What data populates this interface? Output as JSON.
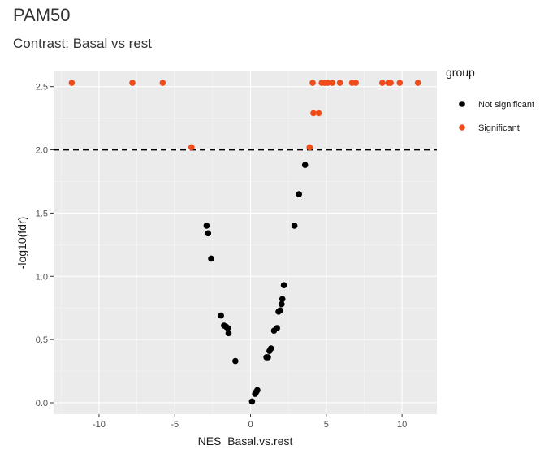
{
  "page": {
    "title": "PAM50",
    "subtitle": "Contrast: Basal vs rest"
  },
  "chart_data": {
    "type": "scatter",
    "title": "PAM50",
    "subtitle": "Contrast: Basal vs rest",
    "xlabel": "NES_Basal.vs.rest",
    "ylabel": "-log10(fdr)",
    "xlim": [
      -13,
      12.3
    ],
    "ylim": [
      -0.09,
      2.62
    ],
    "x_ticks": [
      -10,
      -5,
      0,
      5,
      10
    ],
    "x_tick_labels": [
      "-10",
      "-5",
      "0",
      "5",
      "10"
    ],
    "y_ticks": [
      0,
      0.5,
      1,
      1.5,
      2,
      2.5
    ],
    "y_tick_labels": [
      "0.0",
      "0.5",
      "1.0",
      "1.5",
      "2.0",
      "2.5"
    ],
    "threshold_line": {
      "y": 2.0,
      "style": "dashed",
      "color": "#000000"
    },
    "grid": true,
    "background": "#ebebeb",
    "legend": {
      "title": "group",
      "position": "right",
      "entries": [
        {
          "label": "Not significant",
          "color": "#000000"
        },
        {
          "label": "Significant",
          "color": "#f04c1a"
        }
      ]
    },
    "series": [
      {
        "name": "Not significant",
        "color": "#000000",
        "points": [
          [
            3.6,
            1.88
          ],
          [
            3.2,
            1.65
          ],
          [
            2.9,
            1.4
          ],
          [
            -2.9,
            1.4
          ],
          [
            -2.8,
            1.34
          ],
          [
            -2.6,
            1.14
          ],
          [
            2.2,
            0.93
          ],
          [
            2.1,
            0.82
          ],
          [
            2.05,
            0.78
          ],
          [
            1.95,
            0.73
          ],
          [
            1.85,
            0.72
          ],
          [
            -1.95,
            0.69
          ],
          [
            1.75,
            0.59
          ],
          [
            1.55,
            0.57
          ],
          [
            -1.75,
            0.61
          ],
          [
            -1.6,
            0.6
          ],
          [
            -1.5,
            0.59
          ],
          [
            -1.45,
            0.55
          ],
          [
            1.35,
            0.43
          ],
          [
            1.25,
            0.41
          ],
          [
            1.15,
            0.36
          ],
          [
            1.05,
            0.36
          ],
          [
            -1.0,
            0.33
          ],
          [
            0.45,
            0.1
          ],
          [
            0.4,
            0.09
          ],
          [
            0.35,
            0.08
          ],
          [
            0.3,
            0.07
          ],
          [
            0.1,
            0.01
          ]
        ]
      },
      {
        "name": "Significant",
        "color": "#f04c1a",
        "points": [
          [
            -11.8,
            2.53
          ],
          [
            -7.8,
            2.53
          ],
          [
            -5.8,
            2.53
          ],
          [
            -3.9,
            2.02
          ],
          [
            3.9,
            2.02
          ],
          [
            4.1,
            2.53
          ],
          [
            4.15,
            2.29
          ],
          [
            4.5,
            2.29
          ],
          [
            4.7,
            2.53
          ],
          [
            4.9,
            2.53
          ],
          [
            5.1,
            2.53
          ],
          [
            5.4,
            2.53
          ],
          [
            5.9,
            2.53
          ],
          [
            6.7,
            2.53
          ],
          [
            6.95,
            2.53
          ],
          [
            8.7,
            2.53
          ],
          [
            9.1,
            2.53
          ],
          [
            9.25,
            2.53
          ],
          [
            9.85,
            2.53
          ],
          [
            11.05,
            2.53
          ]
        ]
      }
    ]
  }
}
